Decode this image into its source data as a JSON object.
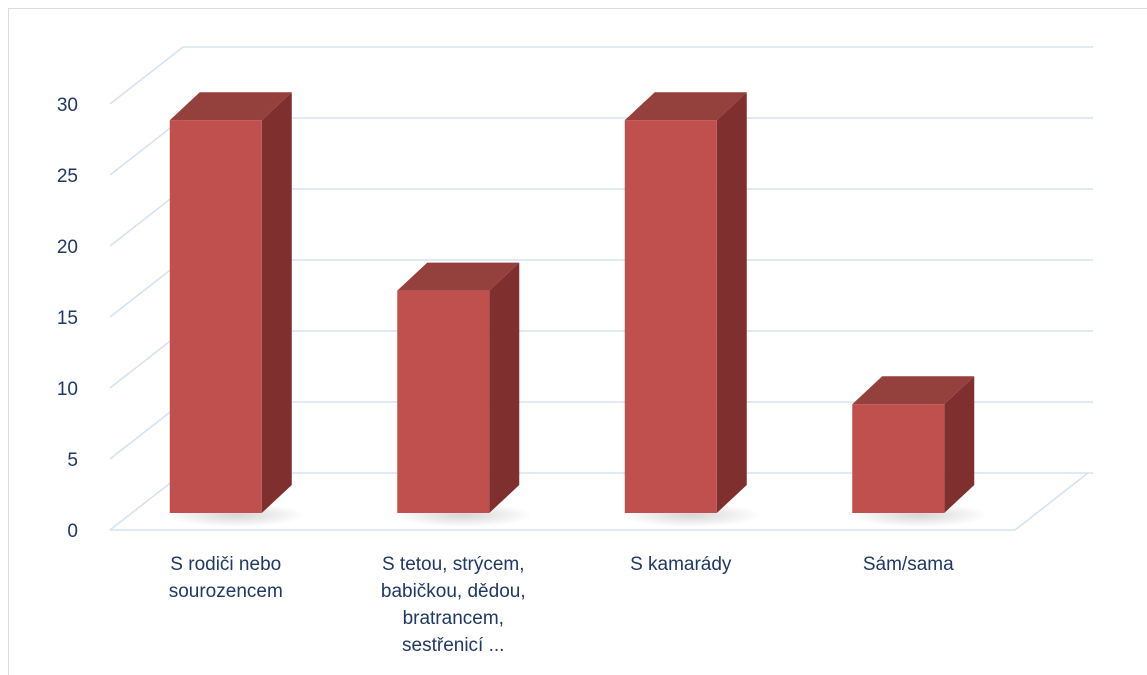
{
  "chart_data": {
    "type": "bar",
    "style": "3d-column",
    "categories": [
      [
        "S rodiči nebo",
        "sourozencem"
      ],
      [
        "S tetou, strýcem,",
        "babičkou, dědou,",
        "bratrancem,",
        "sestřenicí ..."
      ],
      [
        "S kamarády"
      ],
      [
        "Sám/sama"
      ]
    ],
    "values": [
      29,
      17,
      29,
      9
    ],
    "ylim": [
      0,
      30
    ],
    "yticks": [
      0,
      5,
      10,
      15,
      20,
      25,
      30
    ],
    "grid": true,
    "legend": "none",
    "colors": {
      "front": "#c0504d",
      "side": "#7f2f2e",
      "top": "#94403c",
      "grid": "#d5e3f0",
      "axis_text": "#1f3864"
    }
  }
}
